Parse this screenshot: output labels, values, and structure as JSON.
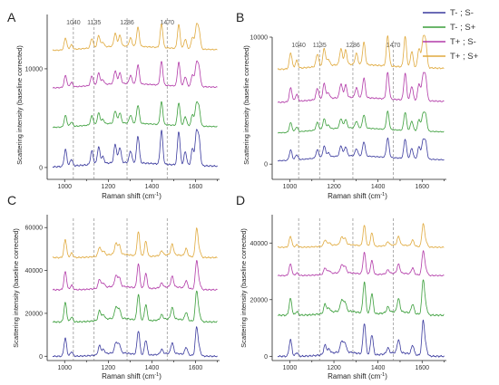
{
  "legend": {
    "entries": [
      {
        "label": "T- ; S-",
        "color": "#3a3a9e"
      },
      {
        "label": "T- ; S+",
        "color": "#3a9e3a"
      },
      {
        "label": "T+ ; S-",
        "color": "#b23aa8"
      },
      {
        "label": "T+ ; S+",
        "color": "#e0aa3e"
      }
    ]
  },
  "chart_data": [
    {
      "panel": "A",
      "type": "line",
      "xlabel": "Raman shift (cm-1)",
      "ylabel": "Scattering intensity (baseline corrected)",
      "xlim": [
        920,
        1710
      ],
      "xticks": [
        1000,
        1200,
        1400,
        1600
      ],
      "ylim": [
        -1200,
        15500
      ],
      "yticks": [
        0,
        10000
      ],
      "marker_lines": [
        1040,
        1135,
        1286,
        1470
      ],
      "offsets": [
        0,
        4000,
        8000,
        11800
      ],
      "peaks": [
        [
          1004,
          0.5
        ],
        [
          1031,
          0.2
        ],
        [
          1125,
          0.4
        ],
        [
          1156,
          0.5
        ],
        [
          1175,
          0.2
        ],
        [
          1232,
          0.55
        ],
        [
          1253,
          0.45
        ],
        [
          1302,
          0.35
        ],
        [
          1336,
          0.8
        ],
        [
          1444,
          1.0
        ],
        [
          1523,
          1.0
        ],
        [
          1553,
          0.4
        ],
        [
          1586,
          0.5
        ],
        [
          1604,
          0.95
        ],
        [
          1616,
          0.75
        ]
      ],
      "peak_scale": [
        3400,
        2300,
        2400,
        2400
      ],
      "broad": [
        [
          1250,
          130,
          300
        ],
        [
          1420,
          260,
          250
        ]
      ],
      "series": [
        {
          "name": "T- ; S-"
        },
        {
          "name": "T- ; S+"
        },
        {
          "name": "T+ ; S-"
        },
        {
          "name": "T+ ; S+"
        }
      ]
    },
    {
      "panel": "B",
      "type": "line",
      "xlabel": "Raman shift (cm-1)",
      "ylabel": "Scattering intensity (baseline corrected)",
      "xlim": [
        920,
        1710
      ],
      "xticks": [
        1000,
        1200,
        1400,
        1600
      ],
      "ylim": [
        -1200,
        10000
      ],
      "yticks": [
        0,
        10000
      ],
      "marker_lines": [
        1040,
        1135,
        1286,
        1470
      ],
      "offsets": [
        200,
        2400,
        4800,
        7400
      ],
      "peaks": [
        [
          1004,
          0.5
        ],
        [
          1031,
          0.25
        ],
        [
          1125,
          0.4
        ],
        [
          1156,
          0.55
        ],
        [
          1175,
          0.2
        ],
        [
          1232,
          0.5
        ],
        [
          1253,
          0.45
        ],
        [
          1302,
          0.35
        ],
        [
          1336,
          0.7
        ],
        [
          1444,
          0.95
        ],
        [
          1523,
          0.95
        ],
        [
          1553,
          0.5
        ],
        [
          1586,
          0.6
        ],
        [
          1604,
          0.85
        ],
        [
          1616,
          0.8
        ]
      ],
      "peak_scale": [
        1600,
        1500,
        2200,
        2500
      ],
      "broad": [
        [
          1250,
          130,
          250
        ],
        [
          1420,
          260,
          250
        ]
      ],
      "series": [
        {
          "name": "T- ; S-"
        },
        {
          "name": "T- ; S+"
        },
        {
          "name": "T+ ; S-"
        },
        {
          "name": "T+ ; S+"
        }
      ]
    },
    {
      "panel": "C",
      "type": "line",
      "xlabel": "Raman shift (cm-1)",
      "ylabel": "Scattering intensity (baseline corrected)",
      "xlim": [
        920,
        1710
      ],
      "xticks": [
        1000,
        1200,
        1400,
        1600
      ],
      "ylim": [
        -2000,
        66000
      ],
      "yticks": [
        0,
        20000,
        40000,
        60000
      ],
      "marker_lines": [
        1040,
        1135,
        1286,
        1470
      ],
      "offsets": [
        0,
        16000,
        31000,
        46000
      ],
      "peaks": [
        [
          1003,
          0.6
        ],
        [
          1032,
          0.15
        ],
        [
          1160,
          0.3
        ],
        [
          1178,
          0.15
        ],
        [
          1235,
          0.35
        ],
        [
          1250,
          0.3
        ],
        [
          1338,
          0.8
        ],
        [
          1372,
          0.5
        ],
        [
          1445,
          0.15
        ],
        [
          1493,
          0.35
        ],
        [
          1557,
          0.25
        ],
        [
          1605,
          0.95
        ],
        [
          1618,
          0.2
        ]
      ],
      "peak_scale": [
        14000,
        15000,
        14000,
        14000
      ],
      "broad": [
        [
          1245,
          70,
          0.12
        ],
        [
          1490,
          60,
          0.1
        ]
      ],
      "series": [
        {
          "name": "T- ; S-"
        },
        {
          "name": "T- ; S+"
        },
        {
          "name": "T+ ; S-"
        },
        {
          "name": "T+ ; S+"
        }
      ]
    },
    {
      "panel": "D",
      "type": "line",
      "xlabel": "Raman shift (cm-1)",
      "ylabel": "Scattering intensity (baseline corrected)",
      "xlim": [
        920,
        1710
      ],
      "xticks": [
        1000,
        1200,
        1400,
        1600
      ],
      "ylim": [
        -1500,
        50000
      ],
      "yticks": [
        0,
        20000,
        40000
      ],
      "marker_lines": [
        1040,
        1135,
        1286,
        1470
      ],
      "offsets": [
        0,
        14500,
        28500,
        38500
      ],
      "peaks": [
        [
          1003,
          0.45
        ],
        [
          1032,
          0.1
        ],
        [
          1160,
          0.25
        ],
        [
          1178,
          0.12
        ],
        [
          1235,
          0.3
        ],
        [
          1250,
          0.25
        ],
        [
          1338,
          0.85
        ],
        [
          1372,
          0.55
        ],
        [
          1445,
          0.15
        ],
        [
          1493,
          0.35
        ],
        [
          1557,
          0.25
        ],
        [
          1605,
          0.95
        ],
        [
          1618,
          0.2
        ]
      ],
      "peak_scale": [
        13000,
        13000,
        9000,
        8500
      ],
      "broad": [
        [
          1245,
          70,
          0.12
        ],
        [
          1490,
          60,
          0.1
        ]
      ],
      "series": [
        {
          "name": "T- ; S-"
        },
        {
          "name": "T- ; S+"
        },
        {
          "name": "T+ ; S-"
        },
        {
          "name": "T+ ; S+"
        }
      ]
    }
  ]
}
